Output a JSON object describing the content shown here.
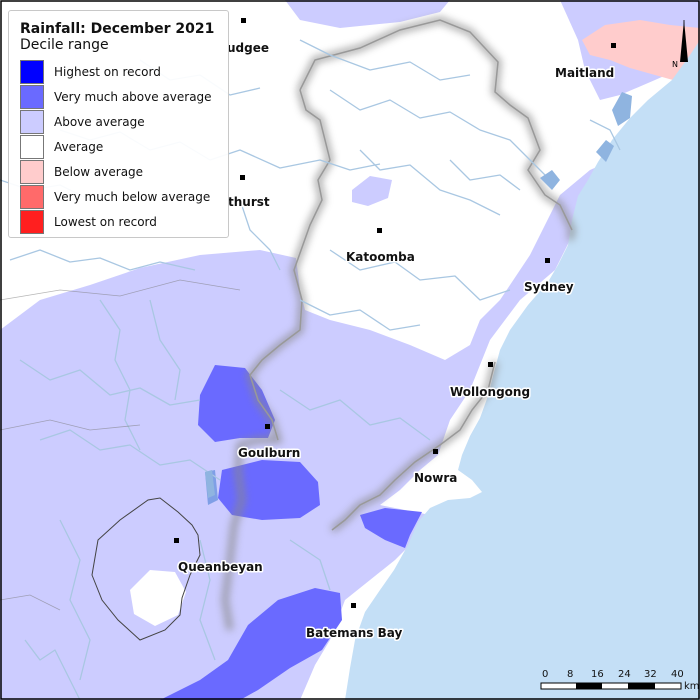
{
  "legend": {
    "title": "Rainfall: December 2021",
    "subtitle": "Decile range",
    "items": [
      {
        "label": "Highest on record",
        "color": "#0000ff"
      },
      {
        "label": "Very much above average",
        "color": "#6a6aff"
      },
      {
        "label": "Above average",
        "color": "#ccccff"
      },
      {
        "label": "Average",
        "color": "#ffffff"
      },
      {
        "label": "Below average",
        "color": "#ffcccc"
      },
      {
        "label": "Very much below average",
        "color": "#ff6a6a"
      },
      {
        "label": "Lowest on record",
        "color": "#ff1f1f"
      }
    ]
  },
  "towns": {
    "mudgee": "udgee",
    "bathurst": "thurst",
    "maitland": "Maitland",
    "katoomba": "Katoomba",
    "sydney": "Sydney",
    "wollongong": "Wollongong",
    "goulburn": "Goulburn",
    "nowra": "Nowra",
    "queanbeyan": "Queanbeyan",
    "batemans_bay": "Batemans Bay"
  },
  "scale_bar": {
    "ticks": [
      "0",
      "8",
      "16",
      "24",
      "32",
      "40"
    ],
    "unit": "km"
  },
  "north_arrow": {
    "label": "N"
  },
  "colors": {
    "ocean": "#c4dff6",
    "river": "#a9c7e2",
    "boundary": "#7a7a7a"
  }
}
